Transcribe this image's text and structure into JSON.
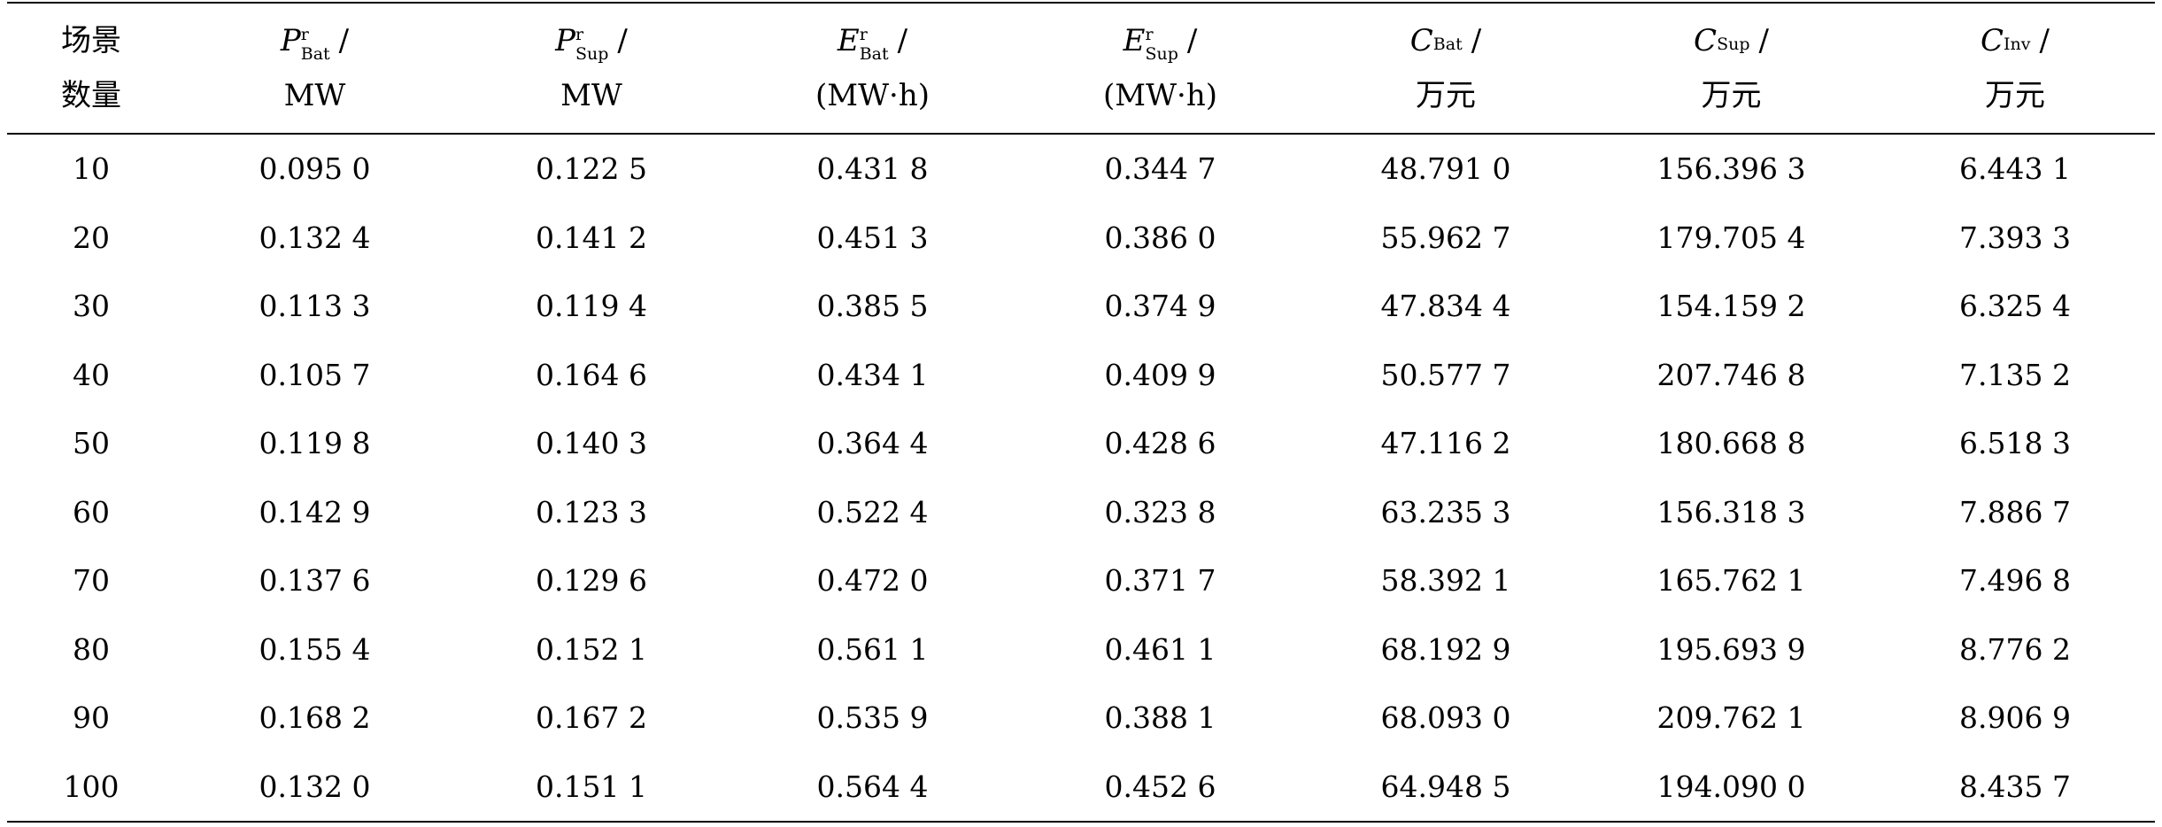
{
  "table": {
    "headers": [
      {
        "line1": "场景",
        "line2": "数量"
      },
      {
        "symbol": "P",
        "sup": "r",
        "sub": "Bat",
        "slash": "/",
        "unit": "MW"
      },
      {
        "symbol": "P",
        "sup": "r",
        "sub": "Sup",
        "slash": "/",
        "unit": "MW"
      },
      {
        "symbol": "E",
        "sup": "r",
        "sub": "Bat",
        "slash": "/",
        "unit": "(MW·h)"
      },
      {
        "symbol": "E",
        "sup": "r",
        "sub": "Sup",
        "slash": "/",
        "unit": "(MW·h)"
      },
      {
        "symbol": "C",
        "sup": "",
        "sub": "Bat",
        "slash": "/",
        "unit": "万元"
      },
      {
        "symbol": "C",
        "sup": "",
        "sub": "Sup",
        "slash": "/",
        "unit": "万元"
      },
      {
        "symbol": "C",
        "sup": "",
        "sub": "Inv",
        "slash": "/",
        "unit": "万元"
      }
    ],
    "rows": [
      [
        "10",
        "0.095 0",
        "0.122 5",
        "0.431 8",
        "0.344 7",
        "48.791 0",
        "156.396 3",
        "6.443 1"
      ],
      [
        "20",
        "0.132 4",
        "0.141 2",
        "0.451 3",
        "0.386 0",
        "55.962 7",
        "179.705 4",
        "7.393 3"
      ],
      [
        "30",
        "0.113 3",
        "0.119 4",
        "0.385 5",
        "0.374 9",
        "47.834 4",
        "154.159 2",
        "6.325 4"
      ],
      [
        "40",
        "0.105 7",
        "0.164 6",
        "0.434 1",
        "0.409 9",
        "50.577 7",
        "207.746 8",
        "7.135 2"
      ],
      [
        "50",
        "0.119 8",
        "0.140 3",
        "0.364 4",
        "0.428 6",
        "47.116 2",
        "180.668 8",
        "6.518 3"
      ],
      [
        "60",
        "0.142 9",
        "0.123 3",
        "0.522 4",
        "0.323 8",
        "63.235 3",
        "156.318 3",
        "7.886 7"
      ],
      [
        "70",
        "0.137 6",
        "0.129 6",
        "0.472 0",
        "0.371 7",
        "58.392 1",
        "165.762 1",
        "7.496 8"
      ],
      [
        "80",
        "0.155 4",
        "0.152 1",
        "0.561 1",
        "0.461 1",
        "68.192 9",
        "195.693 9",
        "8.776 2"
      ],
      [
        "90",
        "0.168 2",
        "0.167 2",
        "0.535 9",
        "0.388 1",
        "68.093 0",
        "209.762 1",
        "8.906 9"
      ],
      [
        "100",
        "0.132 0",
        "0.151 1",
        "0.564 4",
        "0.452 6",
        "64.948 5",
        "194.090 0",
        "8.435 7"
      ]
    ]
  }
}
